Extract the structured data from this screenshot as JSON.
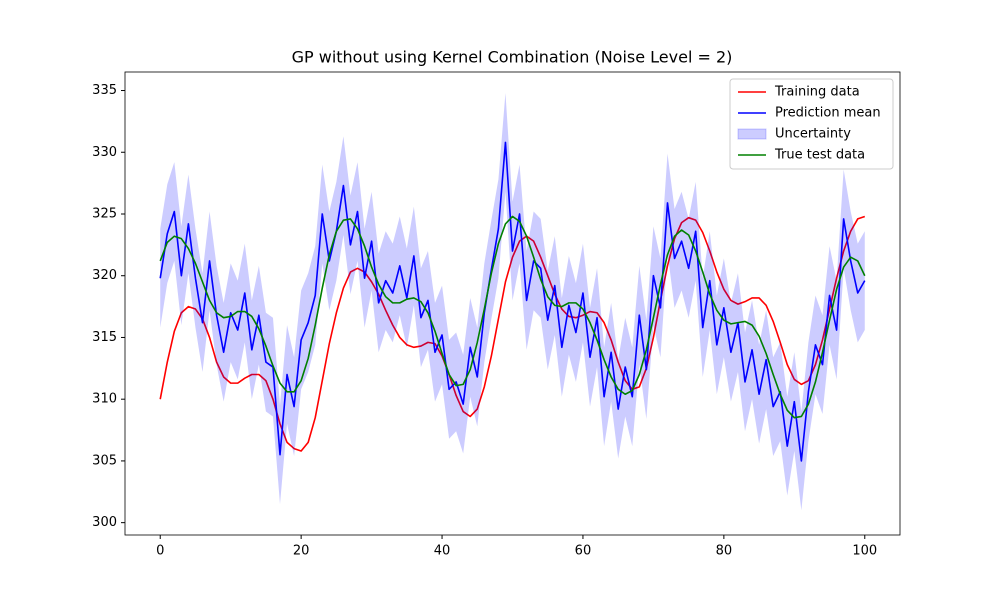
{
  "chart_data": {
    "type": "line",
    "title": "GP without using Kernel Combination (Noise Level = 2)",
    "xlim": [
      -5,
      105
    ],
    "ylim": [
      299,
      336.5
    ],
    "xticks": [
      0,
      20,
      40,
      60,
      80,
      100
    ],
    "yticks": [
      300,
      305,
      310,
      315,
      320,
      325,
      330,
      335
    ],
    "legend": "upper right",
    "x": [
      0,
      1,
      2,
      3,
      4,
      5,
      6,
      7,
      8,
      9,
      10,
      11,
      12,
      13,
      14,
      15,
      16,
      17,
      18,
      19,
      20,
      21,
      22,
      23,
      24,
      25,
      26,
      27,
      28,
      29,
      30,
      31,
      32,
      33,
      34,
      35,
      36,
      37,
      38,
      39,
      40,
      41,
      42,
      43,
      44,
      45,
      46,
      47,
      48,
      49,
      50,
      51,
      52,
      53,
      54,
      55,
      56,
      57,
      58,
      59,
      60,
      61,
      62,
      63,
      64,
      65,
      66,
      67,
      68,
      69,
      70,
      71,
      72,
      73,
      74,
      75,
      76,
      77,
      78,
      79,
      80,
      81,
      82,
      83,
      84,
      85,
      86,
      87,
      88,
      89,
      90,
      91,
      92,
      93,
      94,
      95,
      96,
      97,
      98,
      99,
      100
    ],
    "series": [
      {
        "name": "Training data",
        "color": "#ff0000",
        "values": [
          310,
          313,
          315.5,
          317,
          317.5,
          317.3,
          316.5,
          315,
          313,
          311.8,
          311.3,
          311.3,
          311.7,
          312,
          312,
          311.5,
          310,
          308,
          306.5,
          306,
          305.8,
          306.5,
          308.5,
          311.5,
          314.5,
          317,
          319,
          320.3,
          320.6,
          320.3,
          319.5,
          318.5,
          317.2,
          316,
          315,
          314.4,
          314.2,
          314.3,
          314.6,
          314.5,
          313.5,
          312,
          310.3,
          309,
          308.6,
          309.2,
          311,
          313.5,
          316.5,
          319.5,
          321.5,
          322.8,
          323.2,
          322.8,
          321.5,
          320,
          318.5,
          317.3,
          316.7,
          316.6,
          316.8,
          317.1,
          317,
          316.2,
          314.8,
          313,
          311.5,
          310.8,
          311,
          312.5,
          315,
          318,
          320.8,
          323,
          324.3,
          324.7,
          324.5,
          323.5,
          322,
          320.3,
          318.9,
          318,
          317.7,
          317.9,
          318.2,
          318.2,
          317.6,
          316.3,
          314.6,
          312.8,
          311.6,
          311.2,
          311.5,
          312.8,
          314.8,
          317.3,
          319.8,
          322,
          323.6,
          324.6,
          324.8
        ]
      },
      {
        "name": "Prediction mean",
        "color": "#0000ff",
        "values": [
          319.8,
          323.4,
          325.2,
          320,
          324.2,
          319.8,
          316.2,
          321.2,
          316.8,
          313.8,
          317,
          315.6,
          318.6,
          314,
          316.8,
          313,
          312.6,
          305.5,
          312,
          309.4,
          314.8,
          316.2,
          318.4,
          325,
          321.2,
          323.6,
          327.3,
          322.5,
          325.2,
          319.8,
          322.8,
          317.8,
          319.6,
          318.6,
          320.8,
          318.2,
          321.6,
          316.6,
          318,
          313.8,
          315.2,
          310.8,
          311.4,
          309.6,
          314.2,
          311.8,
          317,
          320.5,
          323.8,
          330.8,
          322,
          325,
          318,
          321.2,
          320.6,
          316.4,
          319.2,
          314.2,
          317.6,
          315.4,
          318.6,
          313.4,
          316.6,
          310.2,
          313.8,
          309.2,
          312.6,
          310.2,
          316.8,
          312.4,
          320,
          317.4,
          325.9,
          321.4,
          322.8,
          320.6,
          323.6,
          315.8,
          319.6,
          314.4,
          317.4,
          313.8,
          316.2,
          311.4,
          314,
          310.4,
          313.2,
          309.4,
          310.6,
          306.2,
          309.8,
          305,
          310.6,
          314.4,
          312.8,
          318.4,
          315.6,
          324.6,
          321.2,
          318.6,
          319.6
        ]
      },
      {
        "name": "Uncertainty",
        "color": "#0000ff",
        "upper": [
          323.8,
          327.4,
          329.2,
          324,
          328.2,
          323.8,
          320.2,
          325.2,
          320.8,
          317.8,
          321,
          319.6,
          322.6,
          318,
          320.8,
          317,
          316.6,
          309.5,
          316,
          313.4,
          318.8,
          320.2,
          322.4,
          329,
          325.2,
          327.6,
          331.3,
          326.5,
          329.2,
          323.8,
          326.8,
          321.8,
          323.6,
          322.6,
          324.8,
          322.2,
          325.6,
          320.6,
          322,
          317.8,
          319.2,
          314.8,
          315.4,
          313.6,
          318.2,
          315.8,
          321,
          324.5,
          327.8,
          334.8,
          326,
          329,
          322,
          325.2,
          324.6,
          320.4,
          323.2,
          318.2,
          321.6,
          319.4,
          322.6,
          317.4,
          320.6,
          314.2,
          317.8,
          313.2,
          316.6,
          314.2,
          320.8,
          316.4,
          324,
          321.4,
          329.9,
          325.4,
          326.8,
          324.6,
          327.6,
          319.8,
          323.6,
          318.4,
          321.4,
          317.8,
          320.2,
          315.4,
          318,
          314.4,
          317.2,
          313.4,
          314.6,
          310.2,
          313.8,
          309,
          314.6,
          318.4,
          316.8,
          322.4,
          319.6,
          328.6,
          325.2,
          322.6,
          323.6
        ],
        "lower": [
          315.8,
          319.4,
          321.2,
          316,
          320.2,
          315.8,
          312.2,
          317.2,
          312.8,
          309.8,
          313,
          311.6,
          314.6,
          310,
          312.8,
          309,
          308.6,
          301.5,
          308,
          305.4,
          310.8,
          312.2,
          314.4,
          321,
          317.2,
          319.6,
          323.3,
          318.5,
          321.2,
          315.8,
          318.8,
          313.8,
          315.6,
          314.6,
          316.8,
          314.2,
          317.6,
          312.6,
          314,
          309.8,
          311.2,
          306.8,
          307.4,
          305.6,
          310.2,
          307.8,
          313,
          316.5,
          319.8,
          326.8,
          318,
          321,
          314,
          317.2,
          316.6,
          312.4,
          315.2,
          310.2,
          313.6,
          311.4,
          314.6,
          309.4,
          312.6,
          306.2,
          309.8,
          305.2,
          308.6,
          306.2,
          312.8,
          308.4,
          316,
          313.4,
          321.9,
          317.4,
          318.8,
          316.6,
          319.6,
          311.8,
          315.6,
          310.4,
          313.4,
          309.8,
          312.2,
          307.4,
          310,
          306.4,
          309.2,
          305.4,
          306.6,
          302.2,
          305.8,
          301,
          306.6,
          310.4,
          308.8,
          314.4,
          311.6,
          320.6,
          317.2,
          314.6,
          315.6
        ]
      },
      {
        "name": "True test data",
        "color": "#008000",
        "values": [
          321.2,
          322.7,
          323.2,
          323,
          322.2,
          321,
          319.5,
          318,
          317,
          316.6,
          316.7,
          317.1,
          317.1,
          316.7,
          315.7,
          314.3,
          312.7,
          311.3,
          310.6,
          310.6,
          311.5,
          313.3,
          316,
          319,
          321.7,
          323.6,
          324.5,
          324.6,
          323.8,
          322.4,
          320.7,
          319.3,
          318.3,
          317.8,
          317.8,
          318.1,
          318.2,
          317.9,
          317,
          315.5,
          313.7,
          312,
          311.1,
          311.2,
          312.4,
          314.6,
          317.3,
          320.2,
          322.6,
          324.2,
          324.8,
          324.4,
          323.2,
          321.5,
          319.7,
          318.3,
          317.6,
          317.5,
          317.8,
          317.8,
          317.3,
          316.2,
          314.8,
          313.2,
          311.8,
          310.8,
          310.4,
          310.7,
          312,
          314,
          316.6,
          319.3,
          321.7,
          323.2,
          323.7,
          323.3,
          322,
          320.3,
          318.5,
          317.2,
          316.4,
          316.1,
          316.2,
          316.3,
          316,
          315.1,
          313.7,
          312,
          310.4,
          309.1,
          308.5,
          308.6,
          309.6,
          311.4,
          313.8,
          316.4,
          318.9,
          320.7,
          321.5,
          321.2,
          320
        ]
      }
    ]
  }
}
